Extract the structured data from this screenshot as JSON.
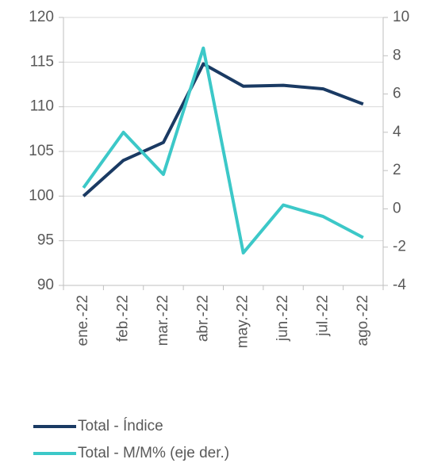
{
  "chart_data": {
    "type": "line",
    "categories": [
      "ene.-22",
      "feb.-22",
      "mar.-22",
      "abr.-22",
      "may.-22",
      "jun.-22",
      "jul.-22",
      "ago.-22"
    ],
    "series": [
      {
        "name": "Total - Índice",
        "color": "#1a3a63",
        "values": [
          100,
          104,
          106,
          114.8,
          112.3,
          112.4,
          112,
          110.3
        ]
      },
      {
        "name": "Total - M/M% (eje der.)",
        "color": "#3cc8c8",
        "axis": "y2",
        "values": [
          1.1,
          4.0,
          1.8,
          8.4,
          -2.3,
          0.2,
          -0.4,
          -1.5
        ]
      }
    ],
    "ylim": [
      90,
      120
    ],
    "yticks": [
      90,
      95,
      100,
      105,
      110,
      115,
      120
    ],
    "y2lim": [
      -4,
      10
    ],
    "y2ticks": [
      -4,
      -2,
      0,
      2,
      4,
      6,
      8,
      10
    ],
    "grid": true,
    "legend": "bottom"
  }
}
